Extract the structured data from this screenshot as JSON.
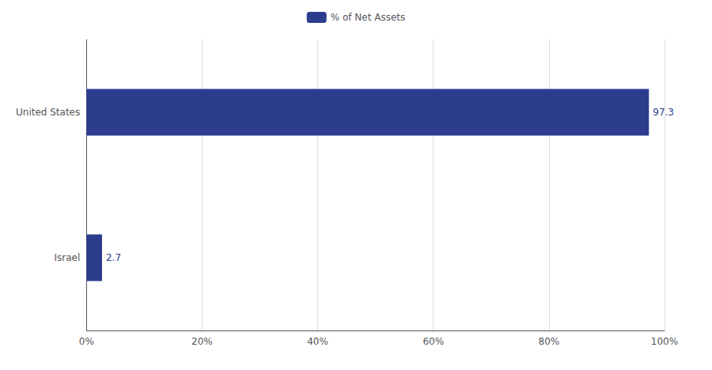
{
  "chart_data": {
    "type": "bar",
    "orientation": "horizontal",
    "categories": [
      "United States",
      "Israel"
    ],
    "series": [
      {
        "name": "% of Net Assets",
        "color": "#2d3d8e",
        "values": [
          97.3,
          2.7
        ]
      }
    ],
    "xlim": [
      0,
      100
    ],
    "xticks": [
      {
        "value": 0,
        "label": "0%"
      },
      {
        "value": 20,
        "label": "20%"
      },
      {
        "value": 40,
        "label": "40%"
      },
      {
        "value": 60,
        "label": "60%"
      },
      {
        "value": 80,
        "label": "80%"
      },
      {
        "value": 100,
        "label": "100%"
      }
    ],
    "grid": true,
    "legend": "top",
    "data_labels": true
  }
}
